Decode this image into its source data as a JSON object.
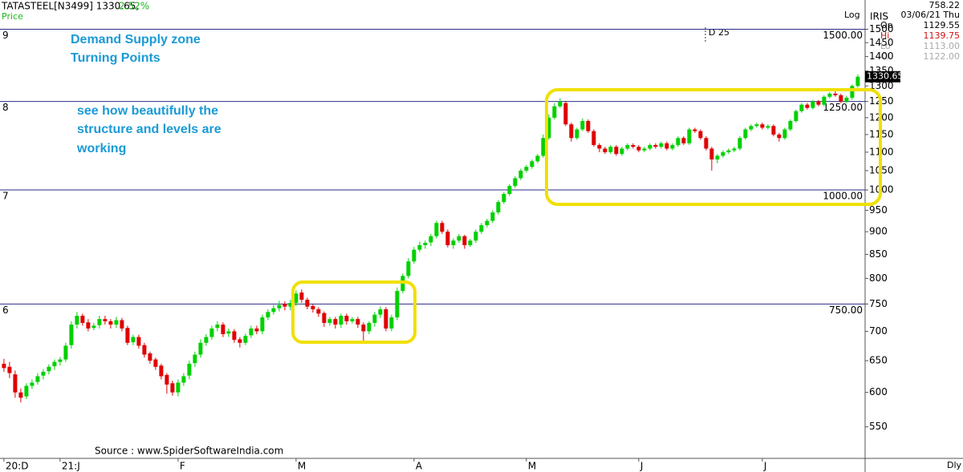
{
  "header": {
    "symbol_line": "TATASTEEL[N3499] 1330.65,",
    "change": "2.52%",
    "panel": "Price",
    "scale_mode": "Log",
    "indicator": "IRIS",
    "interval": "Dly",
    "d_marker": "D 25",
    "info": {
      "value": "758.22",
      "date": "03/06/21 Thu",
      "rows": [
        [
          "Op",
          "1129.55"
        ],
        [
          "Hi",
          "1139.75"
        ],
        [
          "Lo",
          "1113.00"
        ],
        [
          "Cl",
          "1122.00"
        ]
      ]
    }
  },
  "annotations": [
    "Demand Supply zone",
    "Turning Points",
    "see how beautifully the",
    "structure and levels are",
    "working"
  ],
  "source": "Source : www.SpiderSoftwareIndia.com",
  "chart_data": {
    "type": "candlestick",
    "log": true,
    "up_color": "#00d000",
    "down_color": "#e00000",
    "level_color": "#2b2b8c",
    "last_price": 1330.65,
    "ylim": [
      508,
      1526
    ],
    "yticks": [
      550,
      600,
      650,
      700,
      750,
      800,
      850,
      900,
      950,
      1000,
      1050,
      1100,
      1150,
      1200,
      1250,
      1300,
      1350,
      1400,
      1450,
      1500
    ],
    "xlim": [
      -0.7,
      153.3
    ],
    "xticks": [
      {
        "value": 0,
        "label": "20:D"
      },
      {
        "value": 10,
        "label": "21:J"
      },
      {
        "value": 31,
        "label": "F"
      },
      {
        "value": 52,
        "label": "M"
      },
      {
        "value": 73,
        "label": "A"
      },
      {
        "value": 93,
        "label": "M"
      },
      {
        "value": 113,
        "label": "J"
      },
      {
        "value": 135,
        "label": "J"
      }
    ],
    "levels": [
      {
        "value": 1500,
        "label": "1500.00",
        "tag": "9"
      },
      {
        "value": 1250,
        "label": "1250.00",
        "tag": "8"
      },
      {
        "value": 1000,
        "label": "1000.00",
        "tag": "7"
      },
      {
        "value": 750,
        "label": "750.00",
        "tag": "6"
      }
    ],
    "open": [
      645,
      640,
      628,
      600,
      594,
      610,
      616,
      626,
      633,
      641,
      648,
      652,
      676,
      712,
      728,
      716,
      706,
      711,
      722,
      718,
      712,
      720,
      706,
      681,
      690,
      676,
      662,
      652,
      642,
      627,
      614,
      600,
      615,
      626,
      646,
      660,
      680,
      690,
      706,
      712,
      696,
      700,
      686,
      680,
      693,
      705,
      700,
      725,
      735,
      742,
      750,
      745,
      752,
      772,
      758,
      746,
      740,
      733,
      715,
      722,
      712,
      728,
      718,
      722,
      712,
      700,
      715,
      730,
      740,
      705,
      725,
      775,
      805,
      835,
      860,
      870,
      876,
      890,
      920,
      900,
      870,
      880,
      890,
      870,
      880,
      900,
      915,
      925,
      945,
      970,
      990,
      1010,
      1030,
      1050,
      1060,
      1075,
      1090,
      1140,
      1200,
      1235,
      1245,
      1180,
      1140,
      1165,
      1190,
      1160,
      1120,
      1110,
      1100,
      1115,
      1095,
      1110,
      1120,
      1115,
      1105,
      1110,
      1120,
      1115,
      1125,
      1110,
      1120,
      1140,
      1125,
      1165,
      1160,
      1140,
      1110,
      1080,
      1090,
      1100,
      1105,
      1110,
      1140,
      1165,
      1175,
      1180,
      1170,
      1175,
      1150,
      1140,
      1165,
      1190,
      1220,
      1240,
      1230,
      1250,
      1240,
      1265,
      1275,
      1270,
      1250,
      1262,
      1300
    ],
    "high": [
      653,
      648,
      634,
      606,
      614,
      620,
      630,
      636,
      644,
      652,
      656,
      680,
      718,
      735,
      732,
      722,
      715,
      728,
      728,
      722,
      726,
      724,
      710,
      694,
      694,
      680,
      665,
      655,
      645,
      630,
      618,
      620,
      630,
      650,
      665,
      686,
      695,
      710,
      718,
      716,
      705,
      704,
      690,
      696,
      710,
      710,
      730,
      740,
      748,
      756,
      755,
      758,
      776,
      778,
      762,
      750,
      744,
      736,
      726,
      726,
      732,
      732,
      726,
      726,
      716,
      718,
      735,
      745,
      744,
      730,
      782,
      810,
      842,
      866,
      878,
      880,
      895,
      925,
      925,
      905,
      885,
      895,
      893,
      884,
      905,
      920,
      930,
      950,
      975,
      995,
      1015,
      1035,
      1055,
      1065,
      1080,
      1095,
      1150,
      1210,
      1245,
      1260,
      1252,
      1185,
      1170,
      1198,
      1195,
      1165,
      1125,
      1115,
      1120,
      1120,
      1115,
      1125,
      1125,
      1120,
      1115,
      1125,
      1125,
      1130,
      1130,
      1125,
      1145,
      1145,
      1170,
      1170,
      1165,
      1145,
      1115,
      1095,
      1105,
      1110,
      1115,
      1145,
      1170,
      1180,
      1185,
      1185,
      1180,
      1180,
      1155,
      1170,
      1195,
      1225,
      1245,
      1245,
      1255,
      1255,
      1270,
      1280,
      1282,
      1275,
      1268,
      1305,
      1338
    ],
    "low": [
      632,
      622,
      592,
      585,
      590,
      605,
      612,
      620,
      628,
      635,
      642,
      648,
      670,
      705,
      710,
      700,
      702,
      705,
      712,
      705,
      706,
      700,
      676,
      676,
      670,
      655,
      645,
      635,
      620,
      598,
      595,
      594,
      610,
      620,
      640,
      655,
      675,
      685,
      700,
      690,
      690,
      680,
      672,
      676,
      688,
      695,
      695,
      720,
      730,
      736,
      738,
      738,
      746,
      752,
      740,
      734,
      726,
      708,
      710,
      705,
      706,
      712,
      714,
      706,
      680,
      695,
      708,
      724,
      700,
      700,
      720,
      770,
      800,
      830,
      855,
      862,
      868,
      885,
      895,
      865,
      862,
      875,
      862,
      866,
      875,
      895,
      910,
      920,
      940,
      965,
      985,
      1005,
      1025,
      1045,
      1055,
      1070,
      1085,
      1135,
      1195,
      1230,
      1175,
      1130,
      1135,
      1160,
      1155,
      1115,
      1100,
      1095,
      1095,
      1090,
      1090,
      1105,
      1110,
      1100,
      1100,
      1105,
      1110,
      1110,
      1105,
      1105,
      1115,
      1120,
      1120,
      1155,
      1135,
      1105,
      1050,
      1070,
      1085,
      1095,
      1100,
      1105,
      1135,
      1160,
      1170,
      1165,
      1165,
      1145,
      1130,
      1135,
      1160,
      1185,
      1215,
      1225,
      1225,
      1235,
      1235,
      1260,
      1265,
      1245,
      1245,
      1255,
      1295
    ],
    "close": [
      638,
      630,
      600,
      592,
      610,
      615,
      625,
      632,
      640,
      648,
      652,
      675,
      712,
      728,
      715,
      705,
      710,
      722,
      718,
      712,
      720,
      705,
      680,
      690,
      675,
      660,
      650,
      640,
      625,
      612,
      600,
      615,
      625,
      645,
      660,
      680,
      690,
      705,
      712,
      695,
      700,
      685,
      680,
      692,
      705,
      700,
      725,
      735,
      742,
      748,
      745,
      752,
      770,
      758,
      745,
      740,
      732,
      715,
      722,
      712,
      728,
      718,
      722,
      712,
      700,
      715,
      730,
      740,
      705,
      725,
      775,
      805,
      835,
      860,
      870,
      875,
      890,
      920,
      900,
      870,
      880,
      890,
      870,
      880,
      900,
      915,
      925,
      945,
      970,
      990,
      1010,
      1030,
      1050,
      1060,
      1075,
      1090,
      1140,
      1200,
      1235,
      1250,
      1180,
      1140,
      1165,
      1190,
      1160,
      1120,
      1110,
      1100,
      1115,
      1095,
      1110,
      1120,
      1115,
      1105,
      1110,
      1120,
      1115,
      1125,
      1110,
      1120,
      1140,
      1125,
      1165,
      1160,
      1140,
      1110,
      1080,
      1090,
      1100,
      1105,
      1110,
      1140,
      1165,
      1175,
      1180,
      1170,
      1175,
      1150,
      1140,
      1165,
      1190,
      1220,
      1240,
      1230,
      1250,
      1240,
      1265,
      1275,
      1270,
      1250,
      1262,
      1300,
      1330.65
    ]
  }
}
